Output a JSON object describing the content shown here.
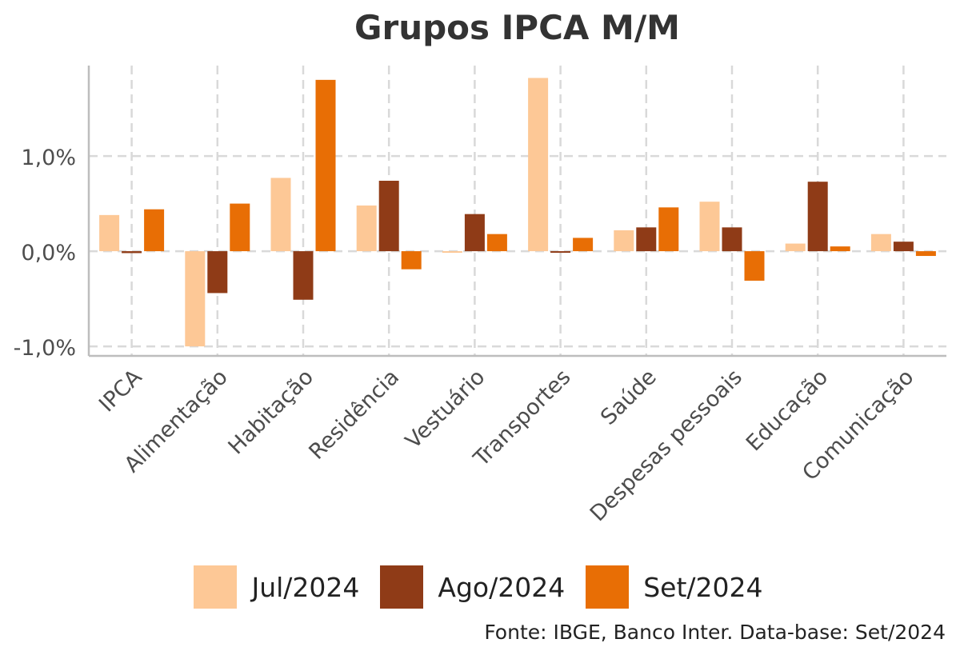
{
  "chart_data": {
    "type": "bar",
    "title": "Grupos IPCA M/M",
    "categories": [
      "IPCA",
      "Alimentação",
      "Habitação",
      "Residência",
      "Vestuário",
      "Transportes",
      "Saúde",
      "Despesas pessoais",
      "Educação",
      "Comunicação"
    ],
    "series": [
      {
        "name": "Jul/2024",
        "color": "#FDC896",
        "values": [
          0.38,
          -1.0,
          0.77,
          0.48,
          -0.01,
          1.82,
          0.22,
          0.52,
          0.08,
          0.18
        ]
      },
      {
        "name": "Ago/2024",
        "color": "#8F3B17",
        "values": [
          -0.02,
          -0.44,
          -0.51,
          0.74,
          0.39,
          0.0,
          0.25,
          0.25,
          0.73,
          0.1
        ]
      },
      {
        "name": "Set/2024",
        "color": "#E86E05",
        "values": [
          0.44,
          0.5,
          1.8,
          -0.19,
          0.18,
          0.14,
          0.46,
          -0.31,
          0.05,
          -0.05
        ]
      }
    ],
    "y_ticks": [
      {
        "value": 1.0,
        "label": "1,0%"
      },
      {
        "value": 0.0,
        "label": "0,0%"
      },
      {
        "value": -1.0,
        "label": "-1,0%"
      }
    ],
    "ylim": [
      -1.1,
      1.95
    ],
    "xlabel": "",
    "ylabel": "",
    "grid": true,
    "legend_position": "bottom"
  },
  "source": "Fonte: IBGE, Banco Inter. Data-base: Set/2024"
}
